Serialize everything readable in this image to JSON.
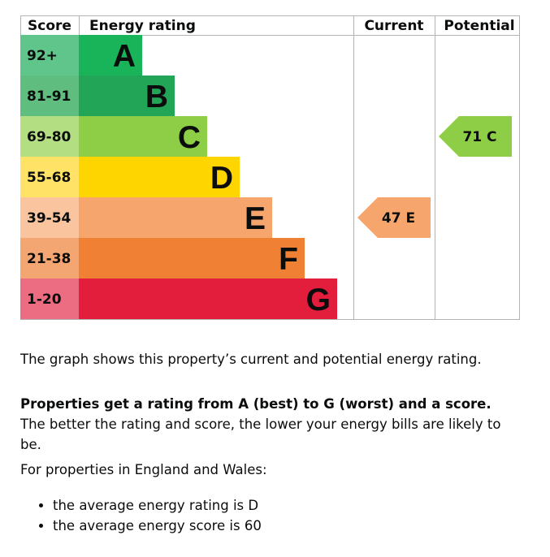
{
  "chart_data": {
    "type": "bar",
    "headers": {
      "score": "Score",
      "rating": "Energy rating",
      "current": "Current",
      "potential": "Potential"
    },
    "bands": [
      {
        "range": "92+",
        "letter": "A",
        "color": "#19b459",
        "range_color": "#5fc58b"
      },
      {
        "range": "81-91",
        "letter": "B",
        "color": "#22a556",
        "range_color": "#5ebd7f"
      },
      {
        "range": "69-80",
        "letter": "C",
        "color": "#8dce46",
        "range_color": "#b3de82"
      },
      {
        "range": "55-68",
        "letter": "D",
        "color": "#ffd500",
        "range_color": "#ffe266"
      },
      {
        "range": "39-54",
        "letter": "E",
        "color": "#f6a66c",
        "range_color": "#f9c49e"
      },
      {
        "range": "21-38",
        "letter": "F",
        "color": "#ef8034",
        "range_color": "#f4a672"
      },
      {
        "range": "1-20",
        "letter": "G",
        "color": "#e31d3c",
        "range_color": "#ec6c81"
      }
    ],
    "current": {
      "score": 47,
      "letter": "E",
      "label": "47 E",
      "color": "#f6a66c"
    },
    "potential": {
      "score": 71,
      "letter": "C",
      "label": "71 C",
      "color": "#8dce46"
    }
  },
  "text": {
    "intro": "The graph shows this property’s current and potential energy rating.",
    "rating_bold": "Properties get a rating from A (best) to G (worst) and a score.",
    "rating_rest": " The better the rating and score, the lower your energy bills are likely to be.",
    "region": "For properties in England and Wales:",
    "bullets": [
      "the average energy rating is D",
      "the average energy score is 60"
    ]
  }
}
